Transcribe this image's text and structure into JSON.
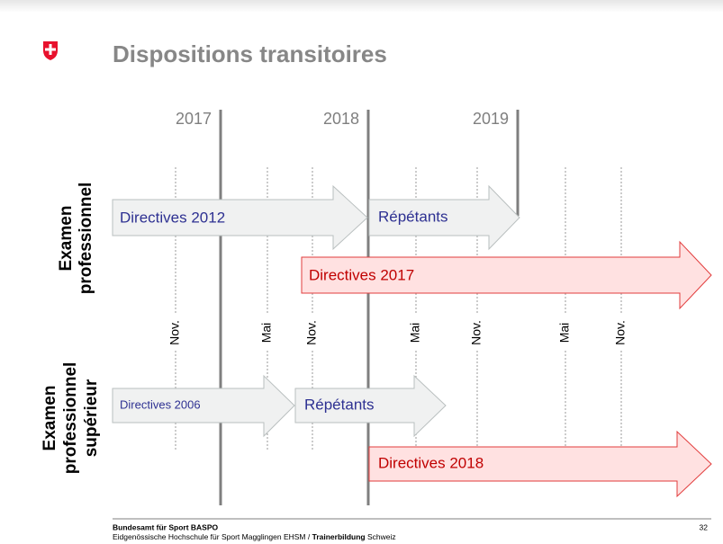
{
  "header": {
    "title": "Dispositions transitoires"
  },
  "years": [
    "2017",
    "2018",
    "2019"
  ],
  "months": [
    "Nov.",
    "Mai",
    "Nov.",
    "Mai",
    "Nov.",
    "Mai",
    "Nov."
  ],
  "rows": [
    {
      "label": [
        "Examen",
        "professionnel"
      ],
      "arrows": [
        "Directives 2012",
        "Répétants",
        "Directives 2017"
      ]
    },
    {
      "label": [
        "Examen",
        "professionnel",
        "supérieur"
      ],
      "arrows": [
        "Directives 2006",
        "Répétants",
        "Directives 2018"
      ]
    }
  ],
  "footer": {
    "line1": "Bundesamt für Sport BASPO",
    "line2_start": "Eidgenössische Hochschule für Sport Magglingen EHSM / ",
    "line2_bold": "Trainerbildung",
    "line2_end": " Schweiz",
    "page": "32"
  }
}
